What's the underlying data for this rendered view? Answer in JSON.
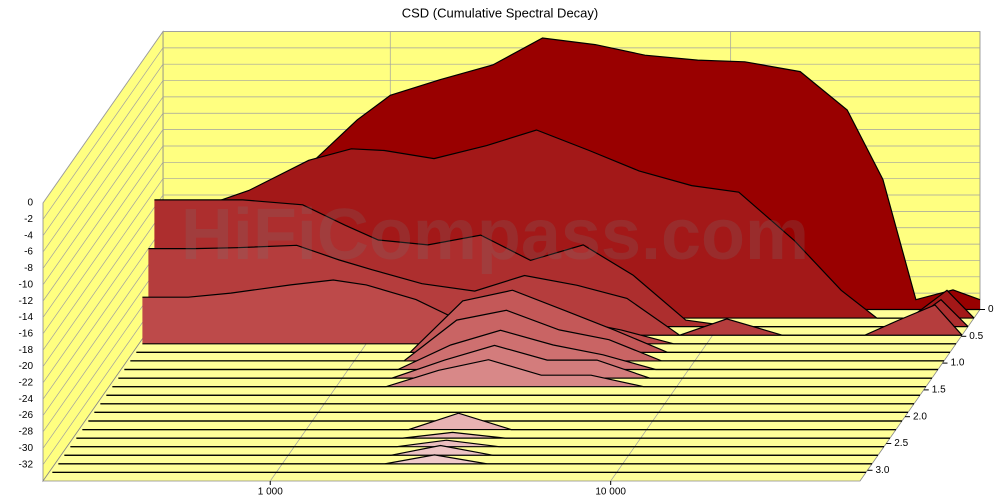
{
  "chart_data": {
    "type": "waterfall",
    "title": "CSD (Cumulative Spectral Decay)",
    "watermark": "HiFiCompass.com",
    "x": [
      220,
      300,
      400,
      600,
      800,
      1000,
      1400,
      2000,
      2800,
      4000,
      5600,
      8000,
      11000,
      16000,
      22000,
      28000,
      35000,
      45000,
      54000
    ],
    "xlim": [
      215,
      54000
    ],
    "log_x": true,
    "xticks": [
      {
        "value": 1000,
        "label": "1 000"
      },
      {
        "value": 10000,
        "label": "10 000"
      }
    ],
    "ylim": [
      -34,
      0
    ],
    "yticks": [
      0,
      -2,
      -4,
      -6,
      -8,
      -10,
      -12,
      -14,
      -16,
      -18,
      -20,
      -22,
      -24,
      -26,
      -28,
      -30,
      -32
    ],
    "zlim": [
      0,
      3.2
    ],
    "zticks": [
      0,
      0.5,
      {
        "value": 1,
        "label": "1.0"
      },
      1.5,
      {
        "value": 2,
        "label": "2.0"
      },
      2.5,
      {
        "value": 3,
        "label": "3.0"
      }
    ],
    "grid": true,
    "series": [
      {
        "time": 0,
        "color": "#990000",
        "values": [
          -23,
          -21.2,
          -19.4,
          -15.7,
          -10.8,
          -7.8,
          -5.9,
          -4.1,
          -0.8,
          -1.6,
          -2.9,
          -3.5,
          -3.7,
          -4.9,
          -9.6,
          -18.1,
          -32.8,
          -31.6,
          -32.8
        ]
      },
      {
        "time": 0.16,
        "color": "#a31818",
        "values": [
          -21.4,
          -20.2,
          -18.4,
          -14.7,
          -13.3,
          -13.5,
          -14.5,
          -12.9,
          -11,
          -13.5,
          -16,
          -17.8,
          -18.6,
          -24.5,
          -30.6,
          -34,
          -34,
          -30.6,
          -34
        ]
      },
      {
        "time": 0.32,
        "color": "#ad2e2e",
        "values": [
          -18.5,
          -18.5,
          -18.5,
          -19.1,
          -21.6,
          -23.4,
          -24,
          -22.8,
          -25.9,
          -24,
          -27.7,
          -33.2,
          -34,
          -34,
          -34,
          -34,
          -34,
          -30.7,
          -34
        ]
      },
      {
        "time": 0.48,
        "color": "#b53d3d",
        "values": [
          -23.4,
          -23.4,
          -23.3,
          -23,
          -24.8,
          -26,
          -27.7,
          -28.6,
          -26.7,
          -27.9,
          -29.5,
          -34,
          -32,
          -34,
          -34,
          -34,
          -32.2,
          -30.3,
          -34
        ]
      },
      {
        "time": 0.64,
        "color": "#bd4a4a",
        "values": [
          -28.3,
          -28.3,
          -27.8,
          -26.8,
          -26.2,
          -26.8,
          -28.6,
          -31.7,
          -28.6,
          -31.1,
          -32.3,
          -34,
          -34,
          -34,
          -34,
          -34,
          -34,
          -34,
          -34
        ]
      },
      {
        "time": 0.8,
        "color": "#c45858",
        "values": [
          -34,
          -34,
          -34,
          -34,
          -34,
          -34,
          -34,
          -27.7,
          -26.4,
          -28.9,
          -31.3,
          -34,
          -34,
          -34,
          -34,
          -34,
          -34,
          -34,
          -34
        ]
      },
      {
        "time": 0.96,
        "color": "#c96464",
        "values": [
          -34,
          -34,
          -34,
          -34,
          -34,
          -34,
          -34,
          -29,
          -27.8,
          -30.2,
          -31.4,
          -34,
          -34,
          -34,
          -34,
          -34,
          -34,
          -34,
          -34
        ]
      },
      {
        "time": 1.12,
        "color": "#ce7070",
        "values": [
          -34,
          -34,
          -34,
          -34,
          -34,
          -34,
          -34,
          -31,
          -29.2,
          -31,
          -32.2,
          -34,
          -34,
          -34,
          -34,
          -34,
          -34,
          -34,
          -34
        ]
      },
      {
        "time": 1.28,
        "color": "#d37c7c",
        "values": [
          -34,
          -34,
          -34,
          -34,
          -34,
          -34,
          -34,
          -31.8,
          -30,
          -31.8,
          -31.8,
          -34,
          -34,
          -34,
          -34,
          -34,
          -34,
          -34,
          -34
        ]
      },
      {
        "time": 1.44,
        "color": "#d88888",
        "values": [
          -34,
          -34,
          -34,
          -34,
          -34,
          -34,
          -34,
          -32,
          -30.7,
          -32.6,
          -32.6,
          -34,
          -34,
          -34,
          -34,
          -34,
          -34,
          -34,
          -34
        ]
      },
      {
        "time": 1.6,
        "color": "#dc9292",
        "values": [
          -34,
          -34,
          -34,
          -34,
          -34,
          -34,
          -34,
          -34,
          -34,
          -34,
          -34,
          -34,
          -34,
          -34,
          -34,
          -34,
          -34,
          -34,
          -34
        ]
      },
      {
        "time": 1.76,
        "color": "#df9a9a",
        "values": [
          -34,
          -34,
          -34,
          -34,
          -34,
          -34,
          -34,
          -34,
          -34,
          -34,
          -34,
          -34,
          -34,
          -34,
          -34,
          -34,
          -34,
          -34,
          -34
        ]
      },
      {
        "time": 1.92,
        "color": "#e2a2a2",
        "values": [
          -34,
          -34,
          -34,
          -34,
          -34,
          -34,
          -34,
          -34,
          -34,
          -34,
          -34,
          -34,
          -34,
          -34,
          -34,
          -34,
          -34,
          -34,
          -34
        ]
      },
      {
        "time": 2.08,
        "color": "#e5aaaa",
        "values": [
          -34,
          -34,
          -34,
          -34,
          -34,
          -34,
          -34,
          -34,
          -34,
          -34,
          -34,
          -34,
          -34,
          -34,
          -34,
          -34,
          -34,
          -34,
          -34
        ]
      },
      {
        "time": 2.24,
        "color": "#e8b2b2",
        "values": [
          -34,
          -34,
          -34,
          -34,
          -34,
          -34,
          -34,
          -34,
          -32,
          -34,
          -34,
          -34,
          -34,
          -34,
          -34,
          -34,
          -34,
          -34,
          -34
        ]
      },
      {
        "time": 2.4,
        "color": "#eab8b8",
        "values": [
          -34,
          -34,
          -34,
          -34,
          -34,
          -34,
          -34,
          -34,
          -33.3,
          -34,
          -34,
          -34,
          -34,
          -34,
          -34,
          -34,
          -34,
          -34,
          -34
        ]
      },
      {
        "time": 2.56,
        "color": "#ecbebe",
        "values": [
          -34,
          -34,
          -34,
          -34,
          -34,
          -34,
          -34,
          -34,
          -33.2,
          -34,
          -34,
          -34,
          -34,
          -34,
          -34,
          -34,
          -34,
          -34,
          -34
        ]
      },
      {
        "time": 2.72,
        "color": "#eec4c4",
        "values": [
          -34,
          -34,
          -34,
          -34,
          -34,
          -34,
          -34,
          -34,
          -32.8,
          -34,
          -34,
          -34,
          -34,
          -34,
          -34,
          -34,
          -34,
          -34,
          -34
        ]
      },
      {
        "time": 2.88,
        "color": "#f0caca",
        "values": [
          -34,
          -34,
          -34,
          -34,
          -34,
          -34,
          -34,
          -34,
          -32.9,
          -34,
          -34,
          -34,
          -34,
          -34,
          -34,
          -34,
          -34,
          -34,
          -34
        ]
      },
      {
        "time": 3.04,
        "color": "#f2d0d0",
        "values": [
          -34,
          -34,
          -34,
          -34,
          -34,
          -34,
          -34,
          -34,
          -34,
          -34,
          -34,
          -34,
          -34,
          -34,
          -34,
          -34,
          -34,
          -34,
          -34
        ]
      }
    ]
  }
}
